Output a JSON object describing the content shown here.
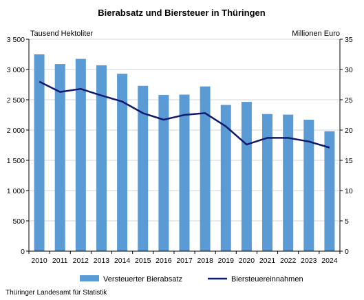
{
  "chart_data": {
    "type": "bar+line",
    "title": "Bierabsatz und Biersteuer in Thüringen",
    "ylabel_left": "Tausend Hektoliter",
    "ylabel_right": "Millionen Euro",
    "categories": [
      "2010",
      "2011",
      "2012",
      "2013",
      "2014",
      "2015",
      "2016",
      "2017",
      "2018",
      "2019",
      "2020",
      "2021",
      "2022",
      "2023",
      "2024"
    ],
    "y_left_ticks": [
      "0",
      "500",
      "1 000",
      "1 500",
      "2 000",
      "2 500",
      "3 000",
      "3 500"
    ],
    "y_right_ticks": [
      "0",
      "5",
      "10",
      "15",
      "20",
      "25",
      "30",
      "35"
    ],
    "ylim_left": [
      0,
      3500
    ],
    "ylim_right": [
      0,
      35
    ],
    "series": [
      {
        "name": "Versteuerter Bierabsatz",
        "type": "bar",
        "axis": "left",
        "color": "#5b9bd5",
        "values": [
          3250,
          3090,
          3175,
          3070,
          2930,
          2730,
          2580,
          2585,
          2720,
          2415,
          2465,
          2265,
          2255,
          2170,
          1980
        ]
      },
      {
        "name": "Biersteuereinnahmen",
        "type": "line",
        "axis": "right",
        "color": "#0d1a6e",
        "values": [
          28.0,
          26.3,
          26.8,
          25.7,
          24.7,
          22.8,
          21.7,
          22.5,
          22.8,
          20.6,
          17.6,
          18.7,
          18.7,
          18.1,
          17.1
        ]
      }
    ],
    "grid": true,
    "legend_position": "bottom"
  },
  "footer": {
    "source": "Thüringer Landesamt für Statistik"
  }
}
